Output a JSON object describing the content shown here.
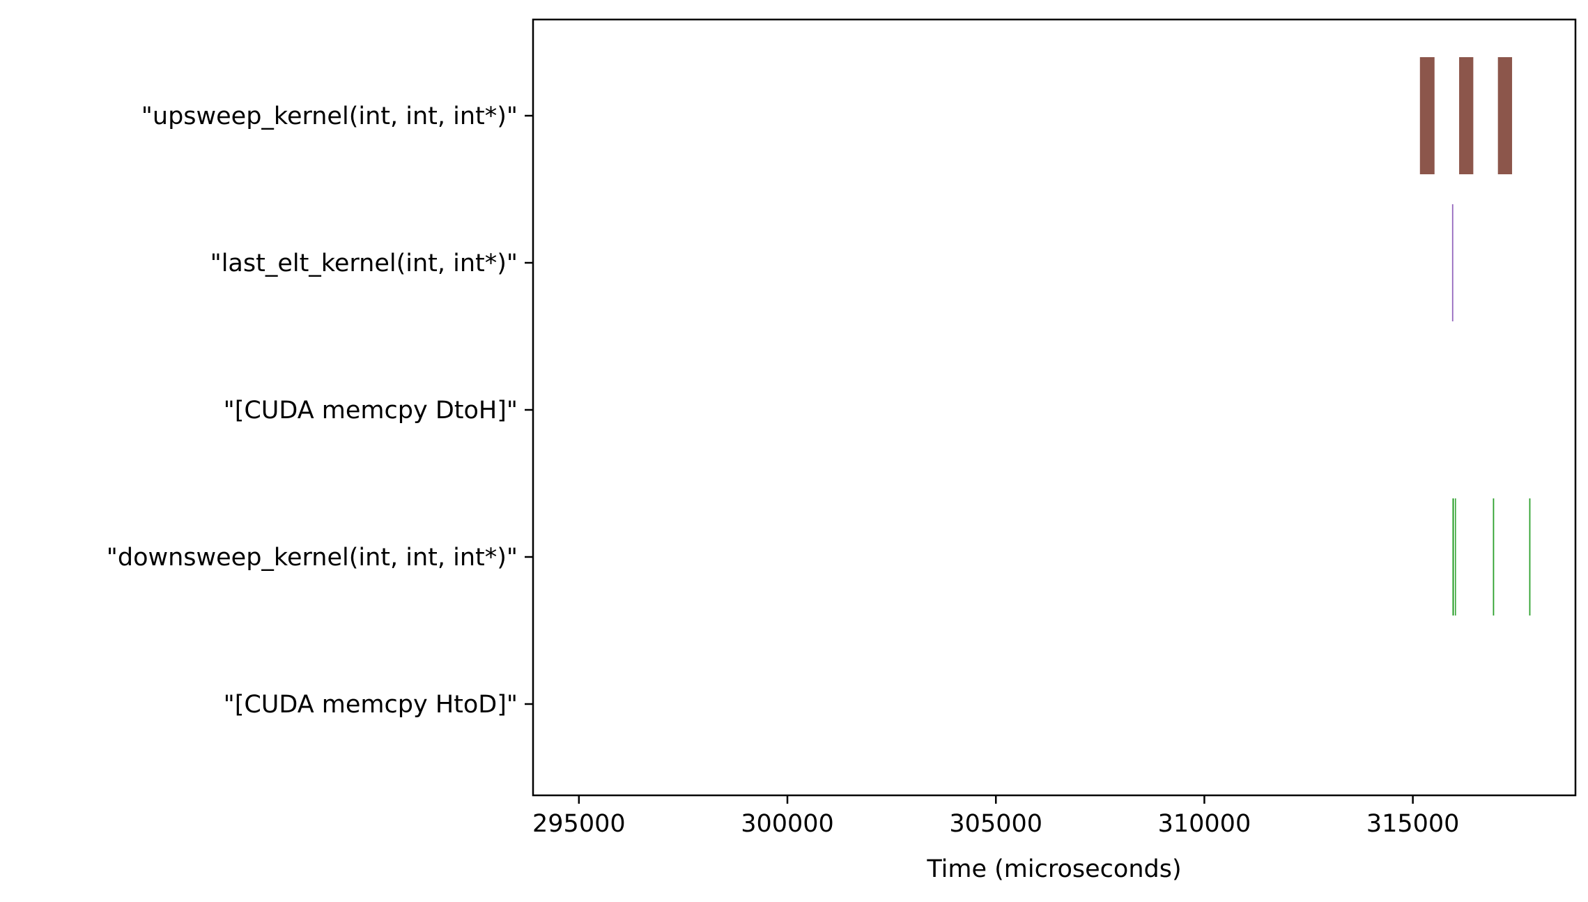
{
  "chart_data": {
    "type": "broken_barh",
    "xlabel": "Time (microseconds)",
    "ylabel": "",
    "xlim": [
      293900,
      318900
    ],
    "x_ticks": [
      295000,
      300000,
      305000,
      310000,
      315000
    ],
    "x_tick_labels": [
      "295000",
      "300000",
      "305000",
      "310000",
      "315000"
    ],
    "categories": [
      "\"upsweep_kernel(int, int, int*)\"",
      "\"last_elt_kernel(int, int*)\"",
      "\"[CUDA memcpy DtoH]\"",
      "\"downsweep_kernel(int, int, int*)\"",
      "\"[CUDA memcpy HtoD]\""
    ],
    "series": [
      {
        "category_index": 0,
        "color": "#8c564b",
        "intervals": [
          [
            315170,
            315520
          ],
          [
            316110,
            316450
          ],
          [
            317040,
            317380
          ]
        ]
      },
      {
        "category_index": 1,
        "color": "#9467bd",
        "intervals": [
          [
            315940,
            315970
          ]
        ]
      },
      {
        "category_index": 2,
        "color": "#d62728",
        "intervals": []
      },
      {
        "category_index": 3,
        "color": "#2ca02c",
        "intervals": [
          [
            315950,
            315985
          ],
          [
            316010,
            316030
          ],
          [
            316920,
            316950
          ],
          [
            317790,
            317820
          ]
        ]
      },
      {
        "category_index": 4,
        "color": "#1f77b4",
        "intervals": []
      }
    ],
    "grid": false,
    "legend": "none"
  }
}
